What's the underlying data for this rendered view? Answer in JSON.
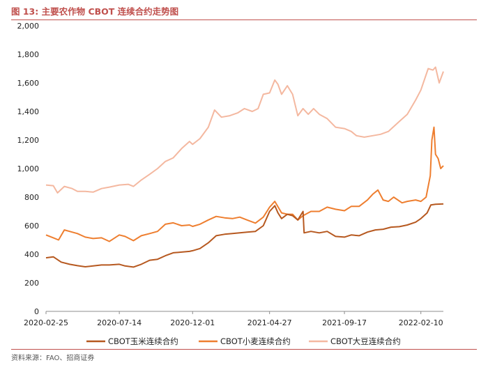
{
  "figure": {
    "title": "图 13:  主要农作物 CBOT 连续合约走势图",
    "source": "资料来源：FAO、招商证券"
  },
  "colors": {
    "corn": "#b6581f",
    "wheat": "#ee7e2f",
    "soy": "#f4b8a0",
    "accent": "#c0504d"
  },
  "chart_data": {
    "type": "line",
    "ylim": [
      0,
      2000
    ],
    "yticks": [
      0,
      200,
      400,
      600,
      800,
      1000,
      1200,
      1400,
      1600,
      1800,
      2000
    ],
    "ytick_labels": [
      "0",
      "200",
      "400",
      "600",
      "800",
      "1,000",
      "1,200",
      "1,400",
      "1,600",
      "1,800",
      "2,000"
    ],
    "xlim": [
      "2020-02-25",
      "2022-03-25"
    ],
    "xtick_labels": [
      "2020-02-25",
      "2020-07-14",
      "2020-12-01",
      "2021-04-27",
      "2021-09-17",
      "2022-02-10"
    ],
    "legend_position": "bottom",
    "series": [
      {
        "name": "CBOT玉米连续合约",
        "color_key": "corn",
        "points": [
          [
            "2020-02-25",
            375
          ],
          [
            "2020-03-10",
            382
          ],
          [
            "2020-03-25",
            345
          ],
          [
            "2020-04-10",
            330
          ],
          [
            "2020-04-25",
            320
          ],
          [
            "2020-05-10",
            312
          ],
          [
            "2020-05-25",
            318
          ],
          [
            "2020-06-10",
            325
          ],
          [
            "2020-06-25",
            325
          ],
          [
            "2020-07-14",
            330
          ],
          [
            "2020-07-25",
            318
          ],
          [
            "2020-08-10",
            310
          ],
          [
            "2020-08-25",
            330
          ],
          [
            "2020-09-10",
            358
          ],
          [
            "2020-09-25",
            365
          ],
          [
            "2020-10-10",
            390
          ],
          [
            "2020-10-25",
            410
          ],
          [
            "2020-11-10",
            415
          ],
          [
            "2020-11-25",
            420
          ],
          [
            "2020-12-01",
            425
          ],
          [
            "2020-12-15",
            440
          ],
          [
            "2020-12-31",
            480
          ],
          [
            "2021-01-15",
            530
          ],
          [
            "2021-01-31",
            540
          ],
          [
            "2021-02-15",
            545
          ],
          [
            "2021-03-01",
            550
          ],
          [
            "2021-03-15",
            555
          ],
          [
            "2021-03-31",
            560
          ],
          [
            "2021-04-15",
            600
          ],
          [
            "2021-04-27",
            700
          ],
          [
            "2021-05-07",
            740
          ],
          [
            "2021-05-13",
            690
          ],
          [
            "2021-05-20",
            650
          ],
          [
            "2021-05-31",
            680
          ],
          [
            "2021-06-10",
            670
          ],
          [
            "2021-06-20",
            640
          ],
          [
            "2021-06-30",
            700
          ],
          [
            "2021-07-02",
            550
          ],
          [
            "2021-07-15",
            560
          ],
          [
            "2021-07-31",
            550
          ],
          [
            "2021-08-15",
            560
          ],
          [
            "2021-08-31",
            525
          ],
          [
            "2021-09-17",
            520
          ],
          [
            "2021-09-30",
            535
          ],
          [
            "2021-10-15",
            530
          ],
          [
            "2021-10-31",
            555
          ],
          [
            "2021-11-15",
            570
          ],
          [
            "2021-11-30",
            575
          ],
          [
            "2021-12-15",
            590
          ],
          [
            "2021-12-31",
            593
          ],
          [
            "2022-01-15",
            605
          ],
          [
            "2022-01-31",
            625
          ],
          [
            "2022-02-10",
            650
          ],
          [
            "2022-02-22",
            690
          ],
          [
            "2022-03-01",
            745
          ],
          [
            "2022-03-10",
            750
          ],
          [
            "2022-03-25",
            752
          ]
        ]
      },
      {
        "name": "CBOT小麦连续合约",
        "color_key": "wheat",
        "points": [
          [
            "2020-02-25",
            535
          ],
          [
            "2020-03-10",
            515
          ],
          [
            "2020-03-20",
            500
          ],
          [
            "2020-03-31",
            570
          ],
          [
            "2020-04-10",
            560
          ],
          [
            "2020-04-25",
            545
          ],
          [
            "2020-05-10",
            520
          ],
          [
            "2020-05-25",
            510
          ],
          [
            "2020-06-10",
            515
          ],
          [
            "2020-06-25",
            490
          ],
          [
            "2020-07-14",
            535
          ],
          [
            "2020-07-25",
            525
          ],
          [
            "2020-08-10",
            495
          ],
          [
            "2020-08-25",
            530
          ],
          [
            "2020-09-10",
            545
          ],
          [
            "2020-09-25",
            560
          ],
          [
            "2020-10-10",
            610
          ],
          [
            "2020-10-25",
            620
          ],
          [
            "2020-11-10",
            600
          ],
          [
            "2020-11-25",
            605
          ],
          [
            "2020-12-01",
            595
          ],
          [
            "2020-12-15",
            610
          ],
          [
            "2020-12-31",
            640
          ],
          [
            "2021-01-15",
            665
          ],
          [
            "2021-01-31",
            655
          ],
          [
            "2021-02-15",
            650
          ],
          [
            "2021-03-01",
            660
          ],
          [
            "2021-03-15",
            640
          ],
          [
            "2021-03-31",
            618
          ],
          [
            "2021-04-15",
            660
          ],
          [
            "2021-04-27",
            730
          ],
          [
            "2021-05-07",
            770
          ],
          [
            "2021-05-20",
            690
          ],
          [
            "2021-05-31",
            680
          ],
          [
            "2021-06-10",
            680
          ],
          [
            "2021-06-20",
            640
          ],
          [
            "2021-06-30",
            670
          ],
          [
            "2021-07-15",
            700
          ],
          [
            "2021-07-31",
            700
          ],
          [
            "2021-08-15",
            730
          ],
          [
            "2021-08-31",
            715
          ],
          [
            "2021-09-17",
            705
          ],
          [
            "2021-09-30",
            735
          ],
          [
            "2021-10-15",
            735
          ],
          [
            "2021-10-31",
            780
          ],
          [
            "2021-11-10",
            820
          ],
          [
            "2021-11-20",
            850
          ],
          [
            "2021-11-30",
            780
          ],
          [
            "2021-12-10",
            770
          ],
          [
            "2021-12-20",
            800
          ],
          [
            "2022-01-05",
            760
          ],
          [
            "2022-01-15",
            770
          ],
          [
            "2022-01-31",
            780
          ],
          [
            "2022-02-10",
            770
          ],
          [
            "2022-02-20",
            800
          ],
          [
            "2022-02-28",
            950
          ],
          [
            "2022-03-03",
            1200
          ],
          [
            "2022-03-07",
            1290
          ],
          [
            "2022-03-10",
            1100
          ],
          [
            "2022-03-15",
            1070
          ],
          [
            "2022-03-20",
            1000
          ],
          [
            "2022-03-25",
            1020
          ]
        ]
      },
      {
        "name": "CBOT大豆连续合约",
        "color_key": "soy",
        "points": [
          [
            "2020-02-25",
            885
          ],
          [
            "2020-03-10",
            880
          ],
          [
            "2020-03-18",
            830
          ],
          [
            "2020-03-31",
            875
          ],
          [
            "2020-04-15",
            860
          ],
          [
            "2020-04-25",
            840
          ],
          [
            "2020-05-10",
            840
          ],
          [
            "2020-05-25",
            835
          ],
          [
            "2020-06-10",
            860
          ],
          [
            "2020-06-25",
            870
          ],
          [
            "2020-07-14",
            885
          ],
          [
            "2020-07-31",
            890
          ],
          [
            "2020-08-10",
            875
          ],
          [
            "2020-08-25",
            920
          ],
          [
            "2020-09-10",
            960
          ],
          [
            "2020-09-25",
            1000
          ],
          [
            "2020-10-10",
            1050
          ],
          [
            "2020-10-25",
            1075
          ],
          [
            "2020-11-10",
            1140
          ],
          [
            "2020-11-25",
            1190
          ],
          [
            "2020-12-01",
            1170
          ],
          [
            "2020-12-15",
            1210
          ],
          [
            "2020-12-31",
            1290
          ],
          [
            "2021-01-12",
            1410
          ],
          [
            "2021-01-25",
            1360
          ],
          [
            "2021-02-10",
            1370
          ],
          [
            "2021-02-25",
            1390
          ],
          [
            "2021-03-10",
            1420
          ],
          [
            "2021-03-25",
            1400
          ],
          [
            "2021-04-05",
            1420
          ],
          [
            "2021-04-15",
            1520
          ],
          [
            "2021-04-27",
            1530
          ],
          [
            "2021-05-07",
            1620
          ],
          [
            "2021-05-13",
            1590
          ],
          [
            "2021-05-20",
            1520
          ],
          [
            "2021-05-31",
            1580
          ],
          [
            "2021-06-10",
            1520
          ],
          [
            "2021-06-20",
            1370
          ],
          [
            "2021-06-30",
            1420
          ],
          [
            "2021-07-10",
            1380
          ],
          [
            "2021-07-20",
            1420
          ],
          [
            "2021-07-31",
            1380
          ],
          [
            "2021-08-15",
            1350
          ],
          [
            "2021-08-31",
            1290
          ],
          [
            "2021-09-17",
            1280
          ],
          [
            "2021-09-30",
            1260
          ],
          [
            "2021-10-10",
            1230
          ],
          [
            "2021-10-25",
            1220
          ],
          [
            "2021-11-10",
            1230
          ],
          [
            "2021-11-25",
            1240
          ],
          [
            "2021-12-10",
            1260
          ],
          [
            "2021-12-31",
            1330
          ],
          [
            "2022-01-15",
            1380
          ],
          [
            "2022-01-31",
            1480
          ],
          [
            "2022-02-10",
            1550
          ],
          [
            "2022-02-24",
            1700
          ],
          [
            "2022-03-05",
            1690
          ],
          [
            "2022-03-10",
            1710
          ],
          [
            "2022-03-17",
            1600
          ],
          [
            "2022-03-25",
            1680
          ]
        ]
      }
    ]
  }
}
